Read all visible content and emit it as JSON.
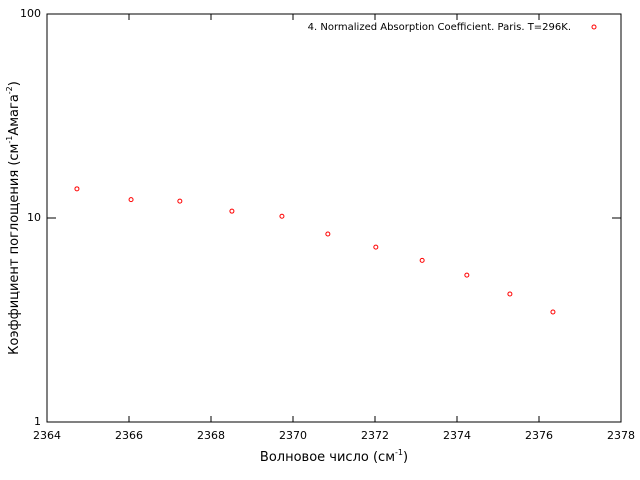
{
  "chart_data": {
    "type": "scatter",
    "xlabel": [
      "Волновое число (см",
      "-1",
      ")"
    ],
    "ylabel": [
      "Коэффициент поглощения (см",
      "-1",
      "Амага",
      "-2",
      ")"
    ],
    "series": [
      {
        "name": "4. Normalized Absorption Coefficient. Paris. T=296K.",
        "color": "#ff0000",
        "x": [
          2364.73,
          2366.05,
          2367.24,
          2368.51,
          2369.73,
          2370.85,
          2372.02,
          2373.15,
          2374.24,
          2375.29,
          2376.34
        ],
        "values": [
          13.9,
          12.3,
          12.1,
          10.8,
          10.2,
          8.35,
          7.2,
          6.2,
          5.25,
          4.24,
          3.46
        ]
      }
    ],
    "xlim": [
      2364,
      2378
    ],
    "xticks": [
      2364,
      2366,
      2368,
      2370,
      2372,
      2374,
      2376,
      2378
    ],
    "ylim": [
      1,
      100
    ],
    "yticks": [
      1,
      10,
      100
    ],
    "log_y": true,
    "legend": "top-right"
  }
}
